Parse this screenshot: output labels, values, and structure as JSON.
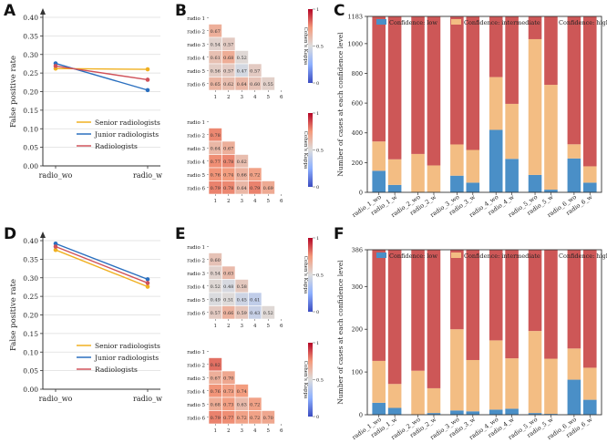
{
  "panel_labels": [
    "A",
    "B",
    "C",
    "D",
    "E",
    "F"
  ],
  "colors": {
    "senior": "#f0b020",
    "junior": "#2a6fbf",
    "all": "#d0525a",
    "conf_low": "#4a8fc7",
    "conf_mid": "#f3bd83",
    "conf_high": "#cd5757",
    "grid": "#dddddd"
  },
  "chart_data": [
    {
      "id": "A",
      "type": "line",
      "categories": [
        "radio_wo",
        "radio_w"
      ],
      "ylabel": "False positive rate",
      "ylim": [
        0,
        0.4
      ],
      "yticks": [
        "0.00",
        "0.05",
        "0.10",
        "0.15",
        "0.20",
        "0.25",
        "0.30",
        "0.35",
        "0.40"
      ],
      "grid": "horizontal",
      "legend": "bottom-right",
      "series": [
        {
          "name": "Senior radiologists",
          "values": [
            0.262,
            0.26
          ]
        },
        {
          "name": "Junior radiologists",
          "values": [
            0.276,
            0.204
          ]
        },
        {
          "name": "Radiologists",
          "values": [
            0.269,
            0.232
          ]
        }
      ]
    },
    {
      "id": "B1",
      "type": "heatmap",
      "shape": "lower-triangle",
      "rows": [
        "radio 1",
        "radio 2",
        "radio 3",
        "radio 4",
        "radio 5",
        "radio 6"
      ],
      "cols": [
        "1",
        "2",
        "3",
        "4",
        "5",
        "6"
      ],
      "values": [
        [],
        [
          0.67
        ],
        [
          0.54,
          0.57
        ],
        [
          0.61,
          0.68,
          0.52
        ],
        [
          0.56,
          0.57,
          0.47,
          0.57
        ],
        [
          0.65,
          0.62,
          0.64,
          0.6,
          0.55
        ]
      ],
      "colorbar": {
        "label": "Cohen's Kappa",
        "ticks": [
          "0",
          "0.5",
          "1"
        ]
      }
    },
    {
      "id": "B2",
      "type": "heatmap",
      "shape": "lower-triangle",
      "rows": [
        "radio 1",
        "radio 2",
        "radio 3",
        "radio 4",
        "radio 5",
        "radio 6"
      ],
      "cols": [
        "1",
        "2",
        "3",
        "4",
        "5",
        "6"
      ],
      "values": [
        [],
        [
          0.78
        ],
        [
          0.64,
          0.67
        ],
        [
          0.77,
          0.78,
          0.62
        ],
        [
          0.76,
          0.74,
          0.66,
          0.72
        ],
        [
          0.79,
          0.78,
          0.64,
          0.79,
          0.69
        ]
      ],
      "colorbar": {
        "label": "Cohen's Kappa",
        "ticks": [
          "0",
          "0.5",
          "1"
        ]
      }
    },
    {
      "id": "C",
      "type": "bar",
      "stacked": true,
      "categories": [
        "radio_1_wo",
        "radio_1_w",
        "radio_2_wo",
        "radio_2_w",
        "radio_3_wo",
        "radio_3_w",
        "radio_4_wo",
        "radio_4_w",
        "radio_5_wo",
        "radio_5_w",
        "radio_6_wo",
        "radio_6_w"
      ],
      "ylabel": "Number of cases at each confidence level",
      "ylim": [
        0,
        1183
      ],
      "yticks": [
        0,
        200,
        400,
        600,
        800,
        1000,
        1183
      ],
      "legend": "top",
      "series": [
        {
          "name": "Confidence: low",
          "values": [
            145,
            50,
            0,
            0,
            112,
            65,
            420,
            225,
            117,
            18,
            228,
            65
          ]
        },
        {
          "name": "Confidence: intermediate",
          "values": [
            197,
            172,
            258,
            181,
            210,
            220,
            355,
            370,
            913,
            705,
            95,
            110
          ]
        },
        {
          "name": "Confidence: high",
          "values": [
            841,
            961,
            925,
            1002,
            861,
            898,
            408,
            588,
            153,
            460,
            860,
            1008
          ]
        }
      ]
    },
    {
      "id": "D",
      "type": "line",
      "categories": [
        "radio_wo",
        "radio_w"
      ],
      "ylabel": "False positive rate",
      "ylim": [
        0,
        0.4
      ],
      "yticks": [
        "0.00",
        "0.05",
        "0.10",
        "0.15",
        "0.20",
        "0.25",
        "0.30",
        "0.35",
        "0.40"
      ],
      "grid": "horizontal",
      "legend": "bottom-right",
      "series": [
        {
          "name": "Senior radiologists",
          "values": [
            0.375,
            0.276
          ]
        },
        {
          "name": "Junior radiologists",
          "values": [
            0.392,
            0.296
          ]
        },
        {
          "name": "Radiologists",
          "values": [
            0.384,
            0.286
          ]
        }
      ]
    },
    {
      "id": "E1",
      "type": "heatmap",
      "shape": "lower-triangle",
      "rows": [
        "radio 1",
        "radio 2",
        "radio 3",
        "radio 4",
        "radio 5",
        "radio 6"
      ],
      "cols": [
        "1",
        "2",
        "3",
        "4",
        "5",
        "6"
      ],
      "values": [
        [],
        [
          0.6
        ],
        [
          0.54,
          0.63
        ],
        [
          0.52,
          0.48,
          0.58
        ],
        [
          0.49,
          0.51,
          0.45,
          0.41
        ],
        [
          0.57,
          0.66,
          0.59,
          0.43,
          0.52
        ]
      ],
      "colorbar": {
        "label": "Cohen's Kappa",
        "ticks": [
          "0",
          "0.5",
          "1"
        ]
      }
    },
    {
      "id": "E2",
      "type": "heatmap",
      "shape": "lower-triangle",
      "rows": [
        "radio 1",
        "radio 2",
        "radio 3",
        "radio 4",
        "radio 5",
        "radio 6"
      ],
      "cols": [
        "1",
        "2",
        "3",
        "4",
        "5",
        "6"
      ],
      "values": [
        [],
        [
          0.82
        ],
        [
          0.67,
          0.7
        ],
        [
          0.76,
          0.73,
          0.74
        ],
        [
          0.68,
          0.73,
          0.63,
          0.72
        ],
        [
          0.79,
          0.77,
          0.72,
          0.72,
          0.7
        ]
      ],
      "colorbar": {
        "label": "Cohen's Kappa",
        "ticks": [
          "0",
          "0.5",
          "1"
        ]
      }
    },
    {
      "id": "F",
      "type": "bar",
      "stacked": true,
      "categories": [
        "radio_1_wo",
        "radio_1_w",
        "radio_2_wo",
        "radio_2_w",
        "radio_3_wo",
        "radio_3_w",
        "radio_4_wo",
        "radio_4_w",
        "radio_5_wo",
        "radio_5_w",
        "radio_6_wo",
        "radio_6_w"
      ],
      "ylabel": "Number of cases at each confidence level",
      "ylim": [
        0,
        386
      ],
      "yticks": [
        0,
        100,
        200,
        300,
        386
      ],
      "legend": "top",
      "series": [
        {
          "name": "Confidence: low",
          "values": [
            28,
            16,
            0,
            4,
            10,
            8,
            12,
            14,
            4,
            2,
            82,
            35
          ]
        },
        {
          "name": "Confidence: intermediate",
          "values": [
            98,
            56,
            103,
            58,
            190,
            120,
            162,
            118,
            192,
            129,
            73,
            75
          ]
        },
        {
          "name": "Confidence: high",
          "values": [
            260,
            314,
            283,
            324,
            186,
            258,
            212,
            254,
            190,
            255,
            231,
            276
          ]
        }
      ]
    }
  ]
}
